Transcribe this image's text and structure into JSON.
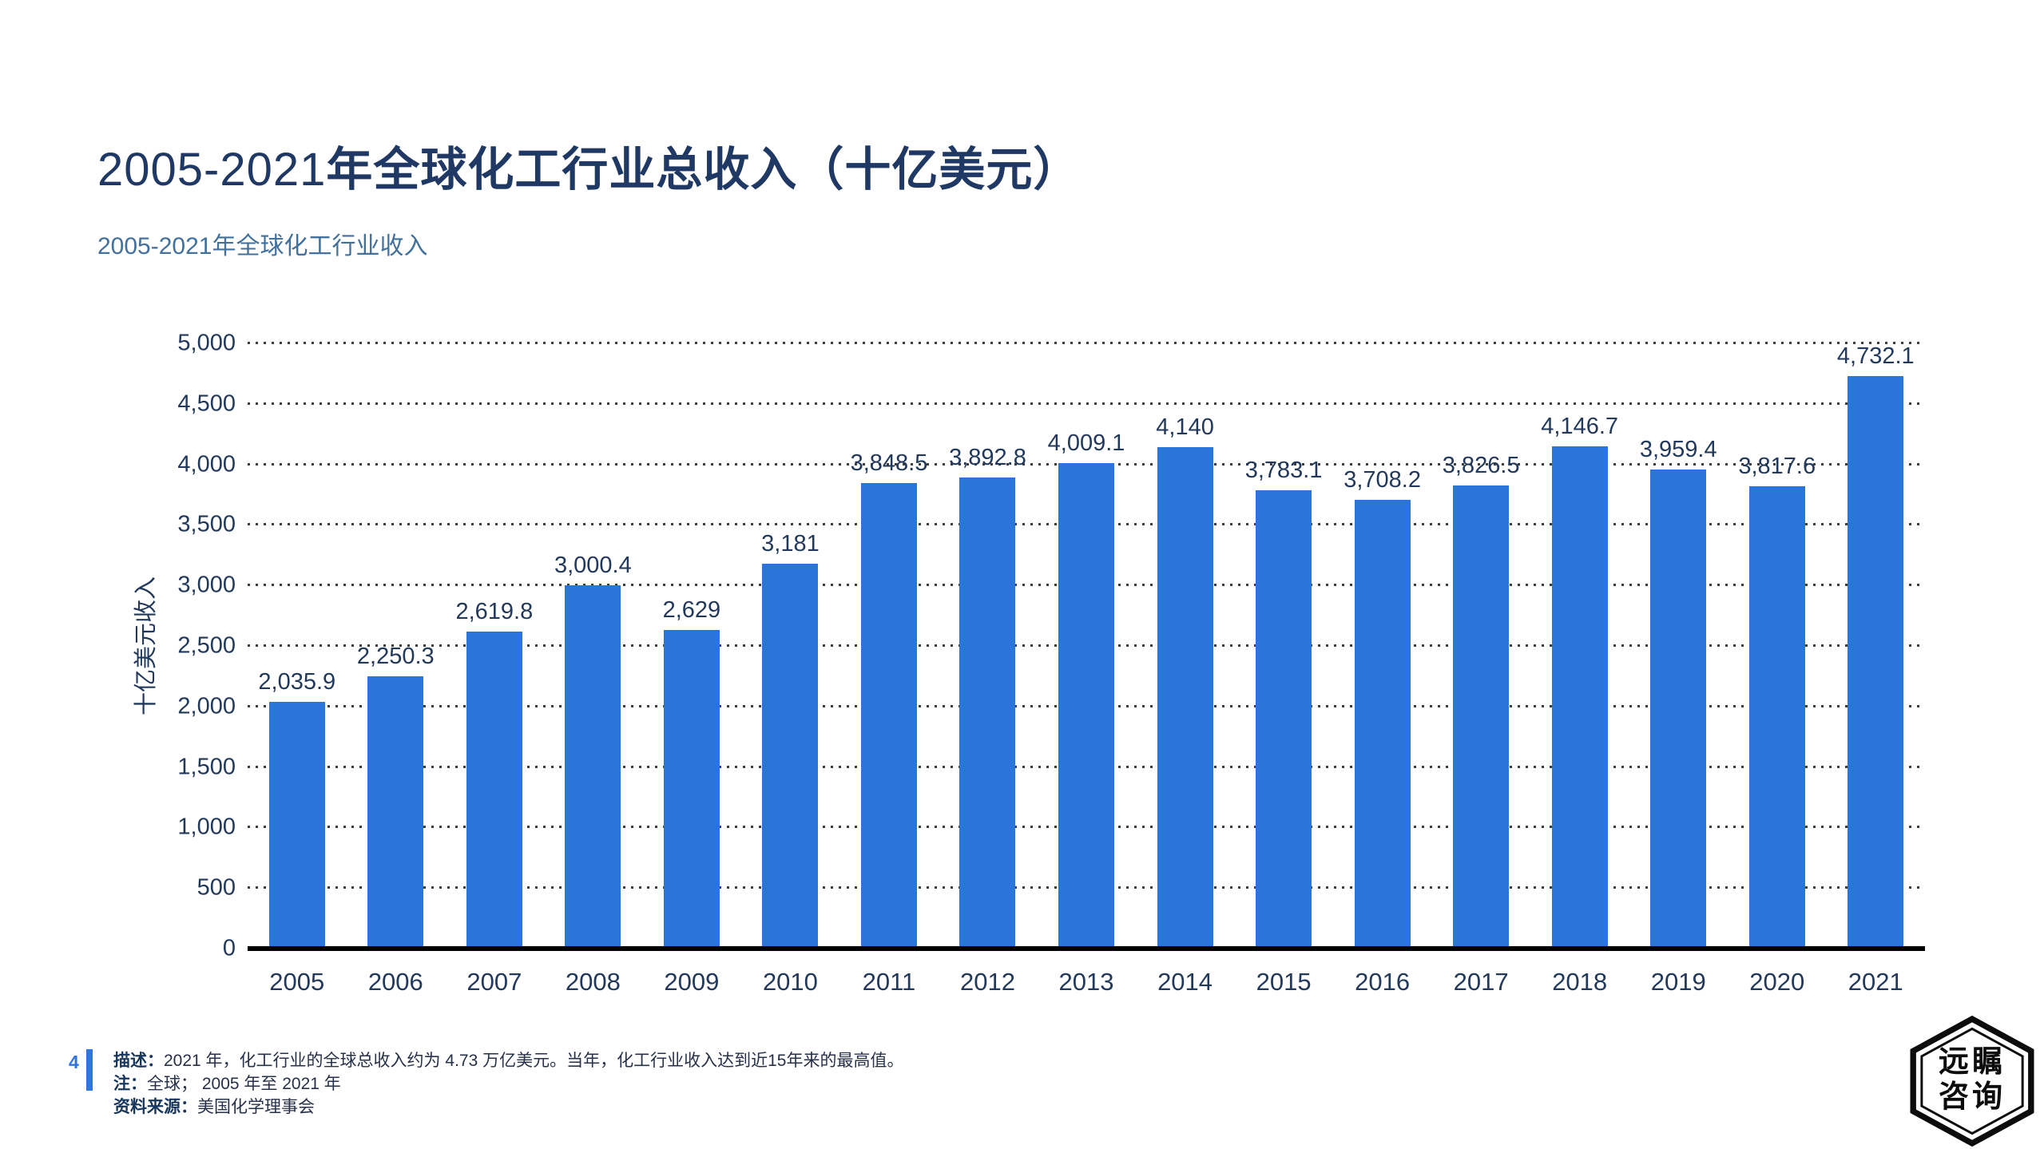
{
  "page": {
    "title": {
      "prefix": "2005-2021",
      "rest": "年全球化工行业总收入（十亿美元）"
    },
    "subtitle": "2005-2021年全球化工行业收入",
    "page_number": "4",
    "footer": [
      {
        "label": "描述：",
        "text": "2021 年，化工行业的全球总收入约为 4.73 万亿美元。当年，化工行业收入达到近15年来的最高值。"
      },
      {
        "label": "注：",
        "text": "全球； 2005 年至 2021 年"
      },
      {
        "label": "资料来源：",
        "text": "美国化学理事会"
      }
    ],
    "logo": {
      "line1": "远瞩",
      "line2": "咨询"
    }
  },
  "colors": {
    "bar": "#2A75DC",
    "title_text": "#1F3864",
    "subtitle_text": "#41719C",
    "axis_text": "#22395C",
    "accent_blue": "#2E75DC",
    "gridline": "#3d3d3d",
    "baseline": "#000000"
  },
  "chart_data": {
    "type": "bar",
    "title": "2005-2021年全球化工行业总收入（十亿美元）",
    "subtitle": "2005-2021年全球化工行业收入",
    "xlabel": "",
    "ylabel": "十亿美元收入",
    "categories": [
      "2005",
      "2006",
      "2007",
      "2008",
      "2009",
      "2010",
      "2011",
      "2012",
      "2013",
      "2014",
      "2015",
      "2016",
      "2017",
      "2018",
      "2019",
      "2020",
      "2021"
    ],
    "values": [
      2035.9,
      2250.3,
      2619.8,
      3000.4,
      2629,
      3181,
      3848.5,
      3892.8,
      4009.1,
      4140,
      3783.1,
      3708.2,
      3826.5,
      4146.7,
      3959.4,
      3817.6,
      4732.1
    ],
    "value_labels": [
      "2,035.9",
      "2,250.3",
      "2,619.8",
      "3,000.4",
      "2,629",
      "3,181",
      "3,848.5",
      "3,892.8",
      "4,009.1",
      "4,140",
      "3,783.1",
      "3,708.2",
      "3,826.5",
      "4,146.7",
      "3,959.4",
      "3,817.6",
      "4,732.1"
    ],
    "ylim": [
      0,
      5000
    ],
    "ytick_step": 500,
    "ytick_labels": [
      "0",
      "500",
      "1,000",
      "1,500",
      "2,000",
      "2,500",
      "3,000",
      "3,500",
      "4,000",
      "4,500",
      "5,000"
    ],
    "grid": "horizontal-dotted",
    "legend": "none"
  }
}
